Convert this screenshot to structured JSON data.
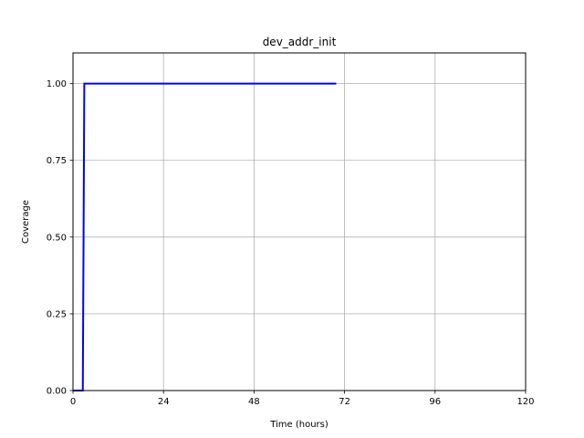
{
  "chart_data": {
    "type": "line",
    "title": "dev_addr_init",
    "xlabel": "Time (hours)",
    "ylabel": "Coverage",
    "xlim": [
      0,
      120
    ],
    "ylim": [
      0,
      1.1
    ],
    "xticks": [
      0,
      24,
      48,
      72,
      96,
      120
    ],
    "yticks": [
      0.0,
      0.25,
      0.5,
      0.75,
      1.0
    ],
    "xtick_labels": [
      "0",
      "24",
      "48",
      "72",
      "96",
      "120"
    ],
    "ytick_labels": [
      "0.00",
      "0.25",
      "0.50",
      "0.75",
      "1.00"
    ],
    "grid": true,
    "series": [
      {
        "color": "#0000ff",
        "x": [
          0,
          2.6,
          3.0,
          69.8
        ],
        "y": [
          0,
          0,
          1.0,
          1.0
        ]
      }
    ]
  }
}
